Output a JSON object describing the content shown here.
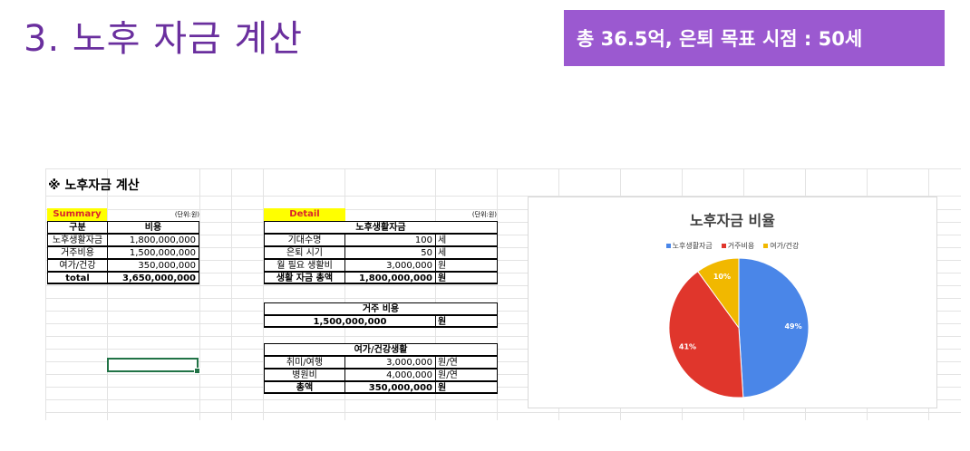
{
  "header": {
    "title": "3. 노후 자금 계산",
    "banner": "총 36.5억, 은퇴 목표 시점  : 50세"
  },
  "sheet": {
    "title": "※ 노후자금 계산",
    "summary": {
      "tag": "Summary",
      "unit": "(단위:원)",
      "headers": [
        "구분",
        "비용"
      ],
      "rows": [
        {
          "label": "노후생활자금",
          "value": "1,800,000,000"
        },
        {
          "label": "거주비용",
          "value": "1,500,000,000"
        },
        {
          "label": "여가/건강",
          "value": "350,000,000"
        }
      ],
      "total_label": "total",
      "total_value": "3,650,000,000"
    },
    "detail": {
      "tag": "Detail",
      "unit": "(단위:원)",
      "living": {
        "header": "노후생활자금",
        "rows": [
          {
            "label": "기대수명",
            "value": "100",
            "unit": "세"
          },
          {
            "label": "은퇴 시기",
            "value": "50",
            "unit": "세"
          },
          {
            "label": "월 필요 생활비",
            "value": "3,000,000",
            "unit": "원"
          }
        ],
        "total_label": "생활 자금 총액",
        "total_value": "1,800,000,000",
        "total_unit": "원"
      },
      "housing": {
        "header": "거주 비용",
        "value": "1,500,000,000",
        "unit": "원"
      },
      "leisure": {
        "header": "여가/건강생활",
        "rows": [
          {
            "label": "취미/여행",
            "value": "3,000,000",
            "unit": "원/연"
          },
          {
            "label": "병원비",
            "value": "4,000,000",
            "unit": "원/연"
          }
        ],
        "total_label": "총액",
        "total_value": "350,000,000",
        "total_unit": "원"
      }
    }
  },
  "chart_data": {
    "type": "pie",
    "title": "노후자금 비율",
    "categories": [
      "노후생활자금",
      "거주비용",
      "여가/건강"
    ],
    "values": [
      49,
      41,
      10
    ],
    "labels": [
      "49%",
      "41%",
      "10%"
    ],
    "colors": [
      "#4a86e8",
      "#e0362c",
      "#f1b800"
    ],
    "legend": "top"
  }
}
